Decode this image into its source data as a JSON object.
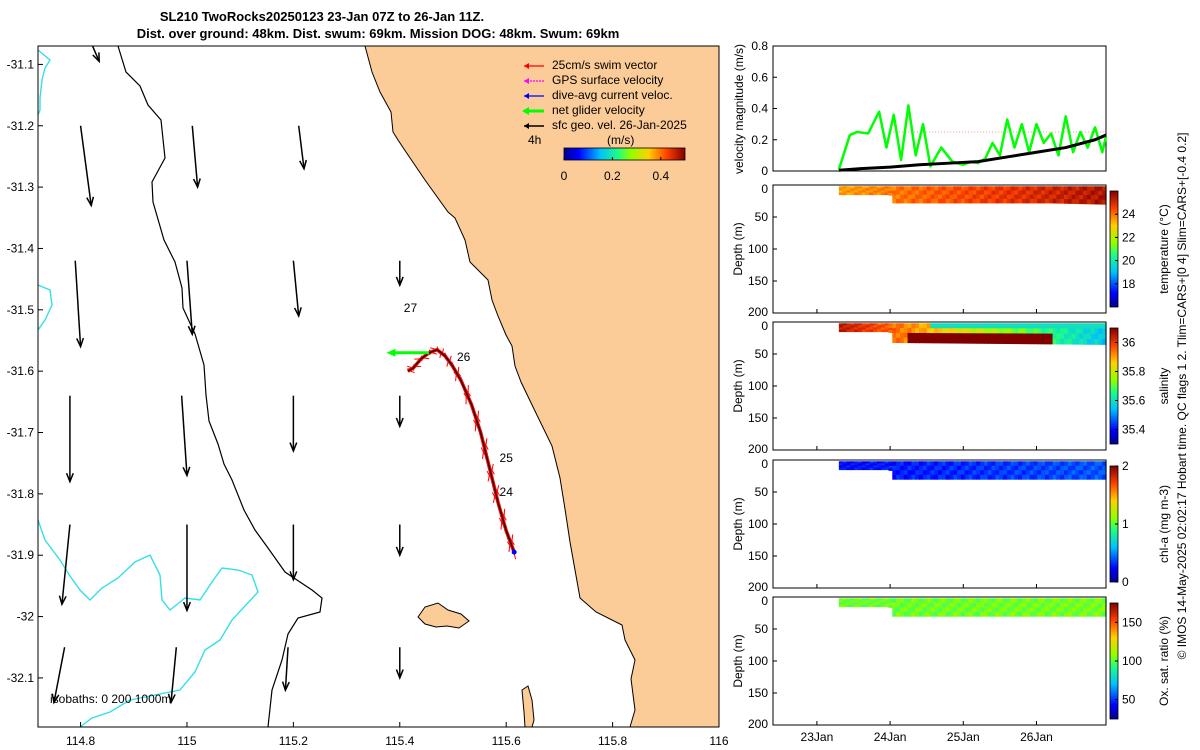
{
  "title_line1": "SL210 TwoRocks20250123 23-Jan 07Z to 26-Jan 11Z.",
  "title_line2": "Dist. over ground: 48km. Dist. swum: 69km. Mission DOG: 48km. Swum: 69km",
  "side_note": "© IMOS 14-May-2025 02:02:17 Hobart time. QC flags 1  2. Tlim=CARS+[0 4] Slim=CARS+[-0.4 0.2]",
  "colors": {
    "land": "#fbcb98",
    "coast": "#000000",
    "isobath": "#33e0e6",
    "swim": "#ff0000",
    "gps": "#ff00ff",
    "dive_avg": "#0000ff",
    "net": "#00ff00",
    "geo": "#000000"
  },
  "chart_data": [
    {
      "type": "map",
      "name": "glider-track-map",
      "xlim": [
        114.72,
        116.0
      ],
      "ylim": [
        -32.18,
        -31.07
      ],
      "x_ticks": [
        114.8,
        115,
        115.2,
        115.4,
        115.6,
        115.8,
        116
      ],
      "x_tick_labels": [
        "114.8",
        "115",
        "115.2",
        "115.4",
        "115.6",
        "115.8",
        "116"
      ],
      "y_ticks": [
        -31.1,
        -31.2,
        -31.3,
        -31.4,
        -31.5,
        -31.6,
        -31.7,
        -31.8,
        -31.9,
        -32,
        -32.1
      ],
      "y_tick_labels": [
        "-31.1",
        "-31.2",
        "-31.3",
        "-31.4",
        "-31.5",
        "-31.6",
        "-31.7",
        "-31.8",
        "-31.9",
        "-32",
        "-32.1"
      ],
      "legend": {
        "position": "top-right",
        "entries": [
          {
            "label": "25cm/s swim vector",
            "color": "#ff0000"
          },
          {
            "label": "GPS surface velocity",
            "color": "#ff00ff"
          },
          {
            "label": "dive-avg current veloc.",
            "color": "#0000ff"
          },
          {
            "label": "net glider velocity",
            "color": "#00ff00"
          },
          {
            "label": "sfc geo. vel. 26-Jan-2025",
            "color": "#000000"
          }
        ],
        "time_label": "4h",
        "colorbar_unit": "(m/s)",
        "colorbar_ticks": [
          0,
          0.2,
          0.4
        ],
        "colorbar_tick_labels": [
          "0",
          "0.2",
          "0.4"
        ],
        "colorbar_range": [
          0,
          0.5
        ]
      },
      "isobaths_label": "isobaths: 0   200  1000m",
      "track": [
        [
          115.615,
          -31.895
        ],
        [
          115.6,
          -31.86
        ],
        [
          115.585,
          -31.815
        ],
        [
          115.575,
          -31.78
        ],
        [
          115.565,
          -31.745
        ],
        [
          115.552,
          -31.7
        ],
        [
          115.535,
          -31.655
        ],
        [
          115.515,
          -31.615
        ],
        [
          115.498,
          -31.59
        ],
        [
          115.485,
          -31.575
        ],
        [
          115.47,
          -31.565
        ],
        [
          115.455,
          -31.57
        ],
        [
          115.44,
          -31.58
        ],
        [
          115.425,
          -31.595
        ],
        [
          115.415,
          -31.6
        ]
      ],
      "day_labels": [
        {
          "label": "27",
          "lon": 115.4,
          "lat": -31.5
        },
        {
          "label": "26",
          "lon": 115.5,
          "lat": -31.58
        },
        {
          "label": "25",
          "lon": 115.58,
          "lat": -31.745
        },
        {
          "label": "24",
          "lon": 115.58,
          "lat": -31.8
        }
      ],
      "net_vector": {
        "from": [
          115.455,
          -31.57
        ],
        "to": [
          115.375,
          -31.57
        ]
      },
      "geo_arrows": [
        {
          "lon": 114.82,
          "lat": -31.065,
          "u": 0.015,
          "v": -0.03
        },
        {
          "lon": 114.8,
          "lat": -31.2,
          "u": 0.02,
          "v": -0.13
        },
        {
          "lon": 115.01,
          "lat": -31.2,
          "u": 0.01,
          "v": -0.1
        },
        {
          "lon": 115.21,
          "lat": -31.2,
          "u": 0.01,
          "v": -0.07
        },
        {
          "lon": 114.79,
          "lat": -31.42,
          "u": 0.01,
          "v": -0.14
        },
        {
          "lon": 115.0,
          "lat": -31.42,
          "u": 0.01,
          "v": -0.12
        },
        {
          "lon": 115.2,
          "lat": -31.42,
          "u": 0.01,
          "v": -0.09
        },
        {
          "lon": 115.4,
          "lat": -31.42,
          "u": 0.0,
          "v": -0.04
        },
        {
          "lon": 114.78,
          "lat": -31.64,
          "u": 0.0,
          "v": -0.14
        },
        {
          "lon": 114.99,
          "lat": -31.64,
          "u": 0.01,
          "v": -0.13
        },
        {
          "lon": 115.2,
          "lat": -31.64,
          "u": 0.0,
          "v": -0.09
        },
        {
          "lon": 115.4,
          "lat": -31.64,
          "u": 0.0,
          "v": -0.05
        },
        {
          "lon": 114.78,
          "lat": -31.85,
          "u": -0.015,
          "v": -0.13
        },
        {
          "lon": 115.0,
          "lat": -31.85,
          "u": 0.0,
          "v": -0.14
        },
        {
          "lon": 115.2,
          "lat": -31.85,
          "u": 0.0,
          "v": -0.09
        },
        {
          "lon": 115.4,
          "lat": -31.85,
          "u": 0.0,
          "v": -0.05
        },
        {
          "lon": 114.77,
          "lat": -32.05,
          "u": -0.02,
          "v": -0.09
        },
        {
          "lon": 114.98,
          "lat": -32.05,
          "u": -0.01,
          "v": -0.09
        },
        {
          "lon": 115.19,
          "lat": -32.05,
          "u": -0.005,
          "v": -0.07
        },
        {
          "lon": 115.4,
          "lat": -32.05,
          "u": 0.0,
          "v": -0.05
        }
      ]
    },
    {
      "type": "line",
      "name": "velocity-magnitude-panel",
      "ylabel": "velocity magnitude (m/s)",
      "xlim": [
        22.4,
        26.95
      ],
      "ylim": [
        0,
        0.8
      ],
      "y_ticks": [
        0,
        0.2,
        0.4,
        0.6,
        0.8
      ],
      "y_tick_labels": [
        "0",
        "0.2",
        "0.4",
        "0.6",
        "0.8"
      ],
      "series": [
        {
          "name": "net glider velocity",
          "color": "#00ff00",
          "x": [
            23.3,
            23.45,
            23.55,
            23.7,
            23.85,
            23.95,
            24.05,
            24.15,
            24.25,
            24.35,
            24.45,
            24.55,
            24.7,
            24.85,
            25.0,
            25.1,
            25.2,
            25.3,
            25.4,
            25.5,
            25.6,
            25.7,
            25.8,
            25.9,
            26.0,
            26.1,
            26.2,
            26.3,
            26.4,
            26.5,
            26.6,
            26.7,
            26.8,
            26.9,
            26.95
          ],
          "y": [
            0.01,
            0.23,
            0.25,
            0.24,
            0.38,
            0.15,
            0.36,
            0.07,
            0.42,
            0.1,
            0.3,
            0.03,
            0.15,
            0.06,
            0.04,
            0.06,
            0.05,
            0.08,
            0.18,
            0.1,
            0.33,
            0.15,
            0.3,
            0.12,
            0.3,
            0.18,
            0.24,
            0.1,
            0.35,
            0.12,
            0.25,
            0.15,
            0.28,
            0.12,
            0.22
          ]
        },
        {
          "name": "dive-avg current",
          "color": "#000000",
          "x": [
            23.3,
            23.6,
            24.0,
            24.4,
            24.8,
            25.2,
            25.6,
            26.0,
            26.4,
            26.8,
            26.95
          ],
          "y": [
            0.005,
            0.015,
            0.025,
            0.04,
            0.05,
            0.06,
            0.09,
            0.12,
            0.15,
            0.2,
            0.23
          ]
        }
      ]
    },
    {
      "type": "heatmap",
      "name": "temperature-section",
      "ylabel": "Depth (m)",
      "colorbar_label": "temperature (°C)",
      "ylim": [
        0,
        200
      ],
      "y_ticks": [
        0,
        50,
        100,
        150,
        200
      ],
      "y_tick_labels": [
        "0",
        "50",
        "100",
        "150",
        "200"
      ],
      "clim": [
        16,
        26
      ],
      "colorbar_ticks": [
        18,
        20,
        22,
        24
      ],
      "colorbar_tick_labels": [
        "18",
        "20",
        "22",
        "24"
      ],
      "data_start": 23.3,
      "data_end": 26.95,
      "depth_profile": [
        [
          23.3,
          15
        ],
        [
          24.0,
          15
        ],
        [
          24.05,
          28
        ],
        [
          26.2,
          28
        ],
        [
          26.95,
          30
        ]
      ],
      "value_at_start": 23.5,
      "value_at_end": 25.5
    },
    {
      "type": "heatmap",
      "name": "salinity-section",
      "ylabel": "Depth (m)",
      "colorbar_label": "salinity",
      "ylim": [
        0,
        200
      ],
      "y_ticks": [
        0,
        50,
        100,
        150,
        200
      ],
      "y_tick_labels": [
        "0",
        "50",
        "100",
        "150",
        "200"
      ],
      "clim": [
        35.3,
        36.1
      ],
      "colorbar_ticks": [
        35.4,
        35.6,
        35.8,
        36
      ],
      "colorbar_tick_labels": [
        "35.4",
        "35.6",
        "35.8",
        "36"
      ],
      "data_start": 23.3,
      "data_end": 26.95,
      "depth_profile": [
        [
          23.3,
          15
        ],
        [
          24.0,
          15
        ],
        [
          24.05,
          32
        ],
        [
          26.95,
          35
        ]
      ],
      "value_at_start": 36.05,
      "value_at_end": 35.55
    },
    {
      "type": "heatmap",
      "name": "chlorophyll-section",
      "ylabel": "Depth (m)",
      "colorbar_label": "chl-a (mg m-3)",
      "ylim": [
        0,
        200
      ],
      "y_ticks": [
        0,
        50,
        100,
        150,
        200
      ],
      "y_tick_labels": [
        "0",
        "50",
        "100",
        "150",
        "200"
      ],
      "clim": [
        0,
        2
      ],
      "colorbar_ticks": [
        0,
        1,
        2
      ],
      "colorbar_tick_labels": [
        "0",
        "1",
        "2"
      ],
      "data_start": 23.3,
      "data_end": 26.95,
      "depth_profile": [
        [
          23.3,
          15
        ],
        [
          24.0,
          15
        ],
        [
          24.05,
          30
        ],
        [
          26.95,
          30
        ]
      ],
      "value_at_start": 0.25,
      "value_at_end": 0.4
    },
    {
      "type": "heatmap",
      "name": "oxygen-section",
      "ylabel": "Depth (m)",
      "colorbar_label": "Ox. sat. ratio (%)",
      "ylim": [
        0,
        200
      ],
      "y_ticks": [
        0,
        50,
        100,
        150,
        200
      ],
      "y_tick_labels": [
        "0",
        "50",
        "100",
        "150",
        "200"
      ],
      "clim": [
        25,
        175
      ],
      "colorbar_ticks": [
        50,
        100,
        150
      ],
      "colorbar_tick_labels": [
        "50",
        "100",
        "150"
      ],
      "x_ticks": [
        23,
        24,
        25,
        26
      ],
      "x_tick_labels": [
        "23Jan",
        "24Jan",
        "25Jan",
        "26Jan"
      ],
      "data_start": 23.3,
      "data_end": 26.95,
      "depth_profile": [
        [
          23.3,
          15
        ],
        [
          24.0,
          15
        ],
        [
          24.05,
          30
        ],
        [
          26.95,
          30
        ]
      ],
      "value_at_start": 102,
      "value_at_end": 104
    }
  ]
}
